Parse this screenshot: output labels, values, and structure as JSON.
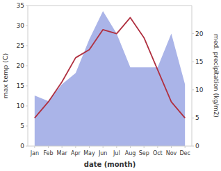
{
  "chart_data": {
    "type": "line",
    "xlabel": "date (month)",
    "ylabel": "max temp (C)",
    "y2label": "med. precipitation (kg/m2)",
    "categories": [
      "Jan",
      "Feb",
      "Mar",
      "Apr",
      "May",
      "Jun",
      "Jul",
      "Aug",
      "Sep",
      "Oct",
      "Nov",
      "Dec"
    ],
    "series": [
      {
        "type": "area",
        "axis": "y2",
        "color": "#aab4e8",
        "values": [
          9,
          8,
          11,
          13,
          19,
          24,
          20,
          14,
          14,
          14,
          20,
          11
        ]
      },
      {
        "type": "line",
        "color": "#b03040",
        "values": [
          7,
          11,
          16,
          22,
          24,
          29,
          28,
          32,
          27,
          19,
          11,
          7
        ]
      }
    ],
    "ylim": [
      0,
      35
    ],
    "yticks": [
      0,
      5,
      10,
      15,
      20,
      25,
      30,
      35
    ],
    "y2lim": [
      0,
      25
    ],
    "y2ticks": [
      0,
      5,
      10,
      15,
      20
    ],
    "grid": false
  }
}
